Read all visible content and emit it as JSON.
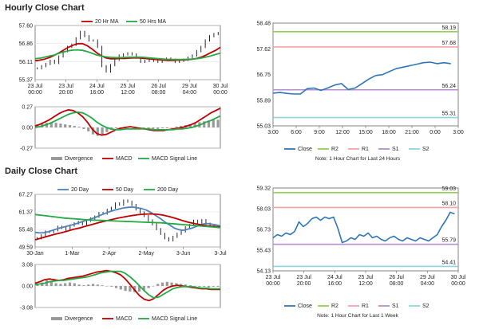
{
  "sections": {
    "hourly_title": "Hourly Close Chart",
    "daily_title": "Daily Close Chart"
  },
  "colors": {
    "price": "#111111",
    "ma_short": "#c00000",
    "ma_long": "#22aa44",
    "ma_mid": "#4f81bd",
    "divergence": "#999999",
    "macd": "#c00000",
    "signal": "#22aa44",
    "close_line": "#2e75b6",
    "r2": "#92d050",
    "r1": "#f4a3a3",
    "s1": "#b48fd0",
    "s2": "#8fd3e0"
  },
  "chart_data": [
    {
      "id": "hourly_price",
      "type": "line",
      "legend": [
        "20 Hr MA",
        "50 Hrs MA"
      ],
      "y_ticks": [
        "57.60",
        "56.86",
        "56.11",
        "55.37"
      ],
      "ylim": [
        55.37,
        57.9
      ],
      "x_ticks": [
        [
          "23 Jul",
          "00:00"
        ],
        [
          "23 Jul",
          "20:00"
        ],
        [
          "24 Jul",
          "16:00"
        ],
        [
          "25 Jul",
          "12:00"
        ],
        [
          "26 Jul",
          "08:00"
        ],
        [
          "29 Jul",
          "04:00"
        ],
        [
          "30 Jul",
          "00:00"
        ]
      ],
      "series": [
        {
          "values": [
            55.9,
            56.0,
            56.1,
            56.25,
            56.15,
            56.45,
            56.7,
            56.9,
            57.0,
            57.3,
            57.6,
            57.4,
            57.2,
            57.2,
            56.9,
            56.0,
            55.75,
            56.05,
            56.3,
            56.5,
            56.55,
            56.6,
            56.55,
            56.4,
            56.2,
            56.25,
            56.3,
            56.25,
            56.2,
            56.3,
            56.35,
            56.3,
            56.2,
            56.25,
            56.3,
            56.4,
            56.5,
            56.7,
            56.9,
            57.2,
            57.4,
            57.5,
            57.55
          ]
        },
        {
          "values": [
            56.25,
            56.28,
            56.33,
            56.4,
            56.5,
            56.62,
            56.75,
            56.88,
            56.98,
            57.05,
            57.05,
            56.95,
            56.8,
            56.62,
            56.48,
            56.38,
            56.34,
            56.35,
            56.36,
            56.36,
            56.38,
            56.39,
            56.38,
            56.36,
            56.34,
            56.32,
            56.3,
            56.28,
            56.27,
            56.27,
            56.28,
            56.29,
            56.3,
            56.32,
            56.36,
            56.42,
            56.52,
            56.63,
            56.74,
            56.88
          ]
        },
        {
          "values": [
            56.35,
            56.37,
            56.42,
            56.47,
            56.52,
            56.6,
            56.66,
            56.72,
            56.75,
            56.76,
            56.74,
            56.68,
            56.6,
            56.52,
            56.47,
            56.43,
            56.41,
            56.4,
            56.4,
            56.41,
            56.42,
            56.42,
            56.42,
            56.41,
            56.39,
            56.37,
            56.35,
            56.33,
            56.32,
            56.31,
            56.31,
            56.31,
            56.32,
            56.33,
            56.35,
            56.38,
            56.43,
            56.48,
            56.55,
            56.6
          ]
        }
      ]
    },
    {
      "id": "hourly_macd",
      "type": "bar",
      "legend": [
        "Divergence",
        "MACD",
        "MACD Signal Line"
      ],
      "y_ticks": [
        "0.27",
        "0.00",
        "-0.27"
      ],
      "ylim": [
        -0.27,
        0.27
      ],
      "series": [
        {
          "values": [
            0.04,
            0.05,
            0.06,
            0.07,
            0.06,
            0.05,
            0.04,
            0.03,
            0.02,
            0.01,
            -0.02,
            -0.05,
            -0.09,
            -0.11,
            -0.09,
            -0.06,
            -0.03,
            -0.01,
            0.0,
            0.01,
            0.01,
            0.0,
            -0.01,
            -0.01,
            -0.02,
            -0.02,
            -0.02,
            -0.01,
            -0.01,
            0.0,
            0.01,
            0.02,
            0.03,
            0.04,
            0.06,
            0.07,
            0.08,
            0.09,
            0.1,
            0.1
          ]
        },
        {
          "values": [
            0.02,
            0.04,
            0.07,
            0.1,
            0.14,
            0.18,
            0.21,
            0.23,
            0.22,
            0.19,
            0.14,
            0.07,
            -0.02,
            -0.08,
            -0.1,
            -0.09,
            -0.06,
            -0.03,
            -0.01,
            0.0,
            0.01,
            0.0,
            -0.01,
            -0.02,
            -0.03,
            -0.04,
            -0.04,
            -0.04,
            -0.03,
            -0.02,
            -0.01,
            0.0,
            0.02,
            0.04,
            0.07,
            0.11,
            0.15,
            0.19,
            0.22,
            0.25
          ]
        },
        {
          "values": [
            0.0,
            0.01,
            0.03,
            0.05,
            0.08,
            0.11,
            0.14,
            0.17,
            0.19,
            0.2,
            0.19,
            0.16,
            0.12,
            0.07,
            0.03,
            0.0,
            -0.02,
            -0.03,
            -0.03,
            -0.02,
            -0.02,
            -0.02,
            -0.02,
            -0.02,
            -0.02,
            -0.03,
            -0.03,
            -0.03,
            -0.03,
            -0.03,
            -0.02,
            -0.02,
            -0.01,
            0.0,
            0.02,
            0.04,
            0.07,
            0.09,
            0.12,
            0.15
          ]
        }
      ]
    },
    {
      "id": "hourly_pivot",
      "type": "line",
      "legend": [
        "Close",
        "R2",
        "R1",
        "S1",
        "S2"
      ],
      "note": "Note: 1 Hour Chart for Last 24 Hours",
      "y_ticks": [
        "58.48",
        "57.62",
        "56.75",
        "55.89",
        "55.03"
      ],
      "ylim": [
        55.03,
        58.48
      ],
      "x_ticks": [
        "3:00",
        "6:00",
        "9:00",
        "12:00",
        "15:00",
        "18:00",
        "21:00",
        "0:00",
        "3:00"
      ],
      "levels": [
        {
          "name": "R2",
          "value": 58.19,
          "label": "58.19"
        },
        {
          "name": "R1",
          "value": 57.68,
          "label": "57.68"
        },
        {
          "name": "S1",
          "value": 56.24,
          "label": "56.24"
        },
        {
          "name": "S2",
          "value": 55.31,
          "label": "55.31"
        }
      ],
      "series": [
        {
          "name": "Close",
          "values": [
            56.13,
            56.15,
            56.12,
            56.1,
            56.1,
            56.28,
            56.3,
            56.22,
            56.3,
            56.4,
            56.45,
            56.25,
            56.3,
            56.45,
            56.6,
            56.72,
            56.75,
            56.85,
            56.95,
            57.0,
            57.05,
            57.1,
            57.15,
            57.17,
            57.12,
            57.15,
            57.12
          ]
        }
      ]
    },
    {
      "id": "daily_price",
      "type": "line",
      "legend": [
        "20 Day",
        "50 Day",
        "200 Day"
      ],
      "y_ticks": [
        "67.27",
        "61.37",
        "55.48",
        "49.59"
      ],
      "ylim": [
        49.59,
        67.27
      ],
      "x_ticks": [
        "30-Jan",
        "1-Mar",
        "2-Apr",
        "2-May",
        "3-Jun",
        "3-Jul"
      ],
      "series": [
        {
          "values": [
            52.5,
            53.5,
            54.8,
            54.6,
            55.2,
            56.4,
            56.0,
            55.3,
            56.8,
            57.5,
            58.0,
            57.2,
            58.4,
            59.2,
            59.8,
            61.0,
            60.8,
            62.1,
            62.8,
            64.2,
            63.8,
            65.2,
            64.8,
            63.7,
            62.2,
            61.2,
            60.0,
            58.5,
            57.2,
            55.6,
            54.0,
            52.5,
            51.8,
            53.0,
            54.0,
            54.8,
            56.2,
            57.0,
            58.4,
            57.8,
            58.6,
            57.4,
            56.8,
            56.4,
            56.2
          ]
        },
        {
          "values": [
            54.5,
            54.3,
            54.4,
            54.8,
            55.3,
            55.8,
            56.2,
            56.6,
            57.0,
            57.5,
            58.0,
            58.5,
            59.0,
            59.5,
            60.2,
            60.8,
            61.4,
            61.9,
            62.3,
            62.7,
            62.9,
            63.0,
            62.8,
            62.5,
            62.0,
            61.2,
            60.2,
            59.2,
            58.0,
            57.0,
            56.0,
            55.4,
            55.2,
            55.6,
            56.0,
            56.6,
            57.2,
            57.5,
            57.3,
            57.0,
            56.7
          ]
        },
        {
          "values": [
            52.0,
            52.6,
            53.2,
            53.8,
            54.3,
            54.9,
            55.5,
            56.0,
            56.6,
            57.2,
            57.8,
            58.3,
            58.8,
            59.3,
            59.7,
            60.1,
            60.4,
            60.6,
            60.7,
            60.6,
            60.3,
            59.8,
            59.2,
            58.5,
            57.9,
            57.4,
            57.0,
            56.7,
            56.5,
            56.3
          ]
        },
        {
          "values": [
            60.5,
            60.2,
            59.9,
            59.6,
            59.3,
            59.1,
            58.9,
            58.7,
            58.6,
            58.5,
            58.4,
            58.3,
            58.2,
            58.1,
            58.0,
            57.9,
            57.8,
            57.7,
            57.5,
            57.3,
            57.1,
            56.9,
            56.7,
            56.5,
            56.3,
            56.1
          ]
        }
      ]
    },
    {
      "id": "daily_macd",
      "type": "bar",
      "legend": [
        "Divergence",
        "MACD",
        "MACD Signal Line"
      ],
      "y_ticks": [
        "3.08",
        "0.00",
        "-3.08"
      ],
      "ylim": [
        -3.08,
        3.08
      ],
      "series": [
        {
          "values": [
            0.3,
            0.5,
            0.8,
            0.7,
            0.4,
            0.3,
            0.4,
            0.5,
            0.4,
            0.2,
            0.1,
            0.2,
            0.3,
            0.2,
            0.1,
            0.0,
            -0.1,
            -0.3,
            -0.5,
            -0.7,
            -0.8,
            -0.9,
            -0.8,
            -0.6,
            -0.3,
            0.0,
            0.3,
            0.5,
            0.6,
            0.5,
            0.4,
            0.3,
            0.2,
            0.1,
            0.0,
            -0.1,
            -0.1,
            -0.2,
            -0.1,
            -0.1
          ]
        },
        {
          "values": [
            0.4,
            0.6,
            0.9,
            1.0,
            0.9,
            0.8,
            0.9,
            1.1,
            1.2,
            1.3,
            1.4,
            1.6,
            1.8,
            2.0,
            2.1,
            2.2,
            2.1,
            1.9,
            1.6,
            1.0,
            0.2,
            -0.6,
            -1.4,
            -1.9,
            -2.1,
            -1.8,
            -1.2,
            -0.6,
            -0.2,
            0.0,
            0.1,
            0.0,
            -0.1,
            -0.2,
            -0.3,
            -0.4,
            -0.4,
            -0.5,
            -0.5,
            -0.5
          ]
        },
        {
          "values": [
            0.2,
            0.3,
            0.4,
            0.6,
            0.7,
            0.8,
            0.8,
            0.9,
            1.0,
            1.1,
            1.2,
            1.3,
            1.5,
            1.7,
            1.9,
            2.0,
            2.1,
            2.1,
            2.1,
            1.8,
            1.3,
            0.7,
            0.0,
            -0.7,
            -1.3,
            -1.7,
            -1.6,
            -1.2,
            -0.8,
            -0.4,
            -0.2,
            -0.1,
            -0.1,
            -0.1,
            -0.2,
            -0.3,
            -0.3,
            -0.4,
            -0.4,
            -0.4
          ]
        }
      ]
    },
    {
      "id": "daily_pivot",
      "type": "line",
      "legend": [
        "Close",
        "R2",
        "R1",
        "S1",
        "S2"
      ],
      "note": "Note: 1 Hour Chart for Last 1 Week",
      "y_ticks": [
        "59.32",
        "58.03",
        "56.73",
        "55.43",
        "54.13"
      ],
      "ylim": [
        54.13,
        59.32
      ],
      "x_ticks": [
        [
          "23 Jul",
          "00:00"
        ],
        [
          "23 Jul",
          "20:00"
        ],
        [
          "24 Jul",
          "16:00"
        ],
        [
          "25 Jul",
          "12:00"
        ],
        [
          "26 Jul",
          "08:00"
        ],
        [
          "29 Jul",
          "04:00"
        ],
        [
          "30 Jul",
          "00:00"
        ]
      ],
      "levels": [
        {
          "name": "R2",
          "value": 59.03,
          "label": "59.03"
        },
        {
          "name": "R1",
          "value": 58.1,
          "label": "58.10"
        },
        {
          "name": "S1",
          "value": 55.79,
          "label": "55.79"
        },
        {
          "name": "S2",
          "value": 54.41,
          "label": "54.41"
        }
      ],
      "series": [
        {
          "name": "Close",
          "values": [
            56.2,
            56.4,
            56.3,
            56.5,
            56.4,
            56.6,
            57.2,
            56.9,
            57.1,
            57.4,
            57.5,
            57.3,
            57.5,
            57.4,
            57.5,
            56.8,
            55.9,
            56.0,
            56.2,
            56.1,
            56.4,
            56.3,
            56.5,
            56.2,
            56.3,
            56.1,
            56.0,
            56.2,
            56.3,
            56.1,
            56.0,
            56.2,
            56.1,
            56.0,
            56.2,
            56.1,
            56.0,
            56.2,
            56.4,
            56.9,
            57.3,
            57.8,
            57.7
          ]
        }
      ]
    }
  ]
}
